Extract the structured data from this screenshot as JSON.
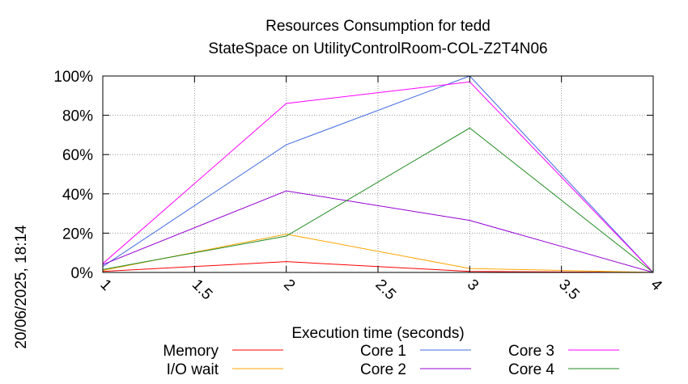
{
  "chart_data": {
    "type": "line",
    "title_line1": "Resources Consumption for tedd",
    "title_line2": "StateSpace on UtilityControlRoom-COL-Z2T4N06",
    "xlabel": "Execution time (seconds)",
    "ylabel": "",
    "side_label": "20/06/2025, 18:14",
    "xlim": [
      1,
      4
    ],
    "ylim": [
      0,
      100
    ],
    "x_ticks": [
      "1",
      "1.5",
      "2",
      "2.5",
      "3",
      "3.5",
      "4"
    ],
    "x_tick_values": [
      1,
      1.5,
      2,
      2.5,
      3,
      3.5,
      4
    ],
    "y_ticks": [
      "0%",
      "20%",
      "40%",
      "60%",
      "80%",
      "100%"
    ],
    "y_tick_values": [
      0,
      20,
      40,
      60,
      80,
      100
    ],
    "grid": true,
    "legend_position": "bottom",
    "x": [
      1,
      2,
      3,
      4
    ],
    "series": [
      {
        "name": "Memory",
        "color": "#ff0000",
        "values": [
          0.5,
          5.5,
          0.5,
          0
        ]
      },
      {
        "name": "I/O wait",
        "color": "#ffa500",
        "values": [
          1,
          19.5,
          2,
          0
        ]
      },
      {
        "name": "Core 1",
        "color": "#4169e1",
        "values": [
          3,
          65,
          100,
          0
        ]
      },
      {
        "name": "Core 2",
        "color": "#9400d3",
        "values": [
          4,
          41.5,
          26.5,
          0
        ]
      },
      {
        "name": "Core 3",
        "color": "#ff00ff",
        "values": [
          4.5,
          86,
          97,
          0
        ]
      },
      {
        "name": "Core 4",
        "color": "#228b22",
        "values": [
          1.5,
          18.5,
          73.5,
          0
        ]
      }
    ]
  }
}
